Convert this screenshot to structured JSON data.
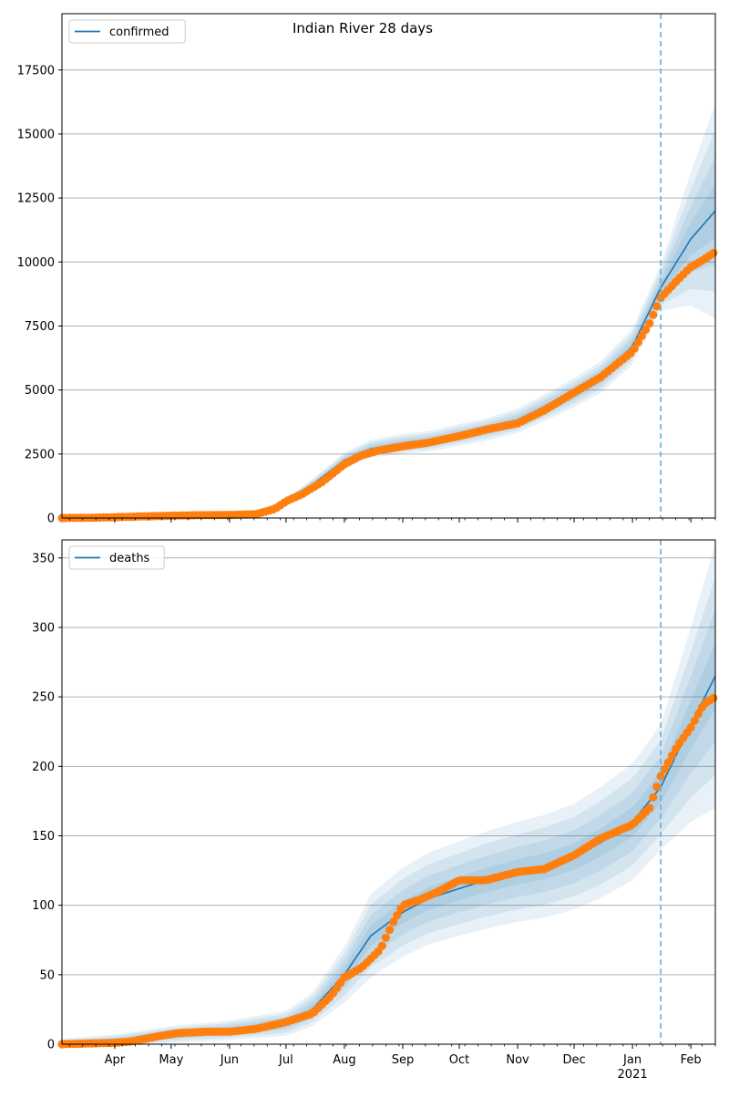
{
  "chart_data": [
    {
      "type": "line",
      "title": "Indian River 28 days",
      "xlabel": "",
      "ylabel": "",
      "ylim": [
        0,
        19700
      ],
      "yticks": [
        0,
        2500,
        5000,
        7500,
        10000,
        12500,
        15000,
        17500
      ],
      "xlim": [
        "2020-03-04",
        "2021-02-14"
      ],
      "forecast_start": "2021-01-16",
      "grid": "horizontal",
      "legend": {
        "position": "upper-left",
        "entries": [
          "confirmed"
        ]
      },
      "colors": {
        "model": "#1f77b4",
        "observed": "#ff7f0e",
        "band": "#1f77b4",
        "forecast_line": "#6aaed6"
      },
      "series": [
        {
          "name": "confirmed",
          "kind": "model",
          "x": [
            "2020-03-04",
            "2020-04-01",
            "2020-05-01",
            "2020-06-01",
            "2020-06-15",
            "2020-07-01",
            "2020-07-15",
            "2020-08-01",
            "2020-08-15",
            "2020-09-01",
            "2020-09-15",
            "2020-10-01",
            "2020-10-15",
            "2020-11-01",
            "2020-11-15",
            "2020-12-01",
            "2020-12-15",
            "2021-01-01",
            "2021-01-16",
            "2021-02-01",
            "2021-02-14"
          ],
          "values": [
            0,
            40,
            80,
            100,
            180,
            650,
            1300,
            2250,
            2700,
            2900,
            3000,
            3250,
            3450,
            3800,
            4300,
            4900,
            5500,
            6700,
            9000,
            10900,
            12000
          ],
          "band_halfwidth": [
            0,
            10,
            20,
            30,
            60,
            120,
            220,
            300,
            350,
            380,
            400,
            420,
            440,
            480,
            520,
            570,
            620,
            700,
            900,
            2600,
            4200
          ]
        },
        {
          "name": "",
          "kind": "observed",
          "x": [
            "2020-03-04",
            "2020-03-20",
            "2020-04-01",
            "2020-04-15",
            "2020-05-01",
            "2020-05-15",
            "2020-06-01",
            "2020-06-15",
            "2020-06-25",
            "2020-07-01",
            "2020-07-10",
            "2020-07-20",
            "2020-08-01",
            "2020-08-10",
            "2020-08-20",
            "2020-09-01",
            "2020-09-15",
            "2020-10-01",
            "2020-10-15",
            "2020-11-01",
            "2020-11-15",
            "2020-12-01",
            "2020-12-15",
            "2021-01-01",
            "2021-01-10",
            "2021-01-16",
            "2021-01-25",
            "2021-02-01",
            "2021-02-08",
            "2021-02-14"
          ],
          "values": [
            0,
            10,
            30,
            60,
            90,
            110,
            120,
            150,
            350,
            650,
            950,
            1400,
            2100,
            2450,
            2650,
            2800,
            2950,
            3200,
            3450,
            3700,
            4200,
            4900,
            5500,
            6500,
            7600,
            8600,
            9300,
            9800,
            10100,
            10400
          ]
        }
      ]
    },
    {
      "type": "line",
      "title": "",
      "xlabel": "",
      "ylabel": "",
      "ylim": [
        0,
        363
      ],
      "yticks": [
        0,
        50,
        100,
        150,
        200,
        250,
        300,
        350
      ],
      "xlim": [
        "2020-03-04",
        "2021-02-14"
      ],
      "forecast_start": "2021-01-16",
      "grid": "horizontal",
      "legend": {
        "position": "upper-left",
        "entries": [
          "deaths"
        ]
      },
      "x_tick_labels": [
        "Apr",
        "May",
        "Jun",
        "Jul",
        "Aug",
        "Sep",
        "Oct",
        "Nov",
        "Dec",
        "Jan",
        "Feb"
      ],
      "x_tick_dates": [
        "2020-04-01",
        "2020-05-01",
        "2020-06-01",
        "2020-07-01",
        "2020-08-01",
        "2020-09-01",
        "2020-10-01",
        "2020-11-01",
        "2020-12-01",
        "2021-01-01",
        "2021-02-01"
      ],
      "x_year_label": "2021",
      "colors": {
        "model": "#1f77b4",
        "observed": "#ff7f0e",
        "band": "#1f77b4",
        "forecast_line": "#6aaed6"
      },
      "series": [
        {
          "name": "deaths",
          "kind": "model",
          "x": [
            "2020-03-04",
            "2020-04-01",
            "2020-05-01",
            "2020-06-01",
            "2020-07-01",
            "2020-07-15",
            "2020-08-01",
            "2020-08-15",
            "2020-09-01",
            "2020-09-15",
            "2020-10-01",
            "2020-10-15",
            "2020-11-01",
            "2020-11-15",
            "2020-12-01",
            "2020-12-15",
            "2021-01-01",
            "2021-01-16",
            "2021-02-01",
            "2021-02-14"
          ],
          "values": [
            0,
            2,
            7,
            10,
            15,
            25,
            50,
            78,
            95,
            105,
            112,
            118,
            124,
            128,
            135,
            145,
            160,
            185,
            230,
            265
          ],
          "band_halfwidth": [
            4,
            5,
            6,
            7,
            9,
            12,
            20,
            30,
            32,
            33,
            34,
            35,
            36,
            37,
            38,
            40,
            42,
            45,
            70,
            95
          ]
        },
        {
          "name": "",
          "kind": "observed",
          "x": [
            "2020-03-04",
            "2020-04-01",
            "2020-04-10",
            "2020-04-25",
            "2020-05-05",
            "2020-05-20",
            "2020-06-01",
            "2020-06-15",
            "2020-07-01",
            "2020-07-15",
            "2020-07-25",
            "2020-08-01",
            "2020-08-10",
            "2020-08-20",
            "2020-08-27",
            "2020-09-01",
            "2020-09-10",
            "2020-09-20",
            "2020-10-01",
            "2020-10-15",
            "2020-11-01",
            "2020-11-15",
            "2020-12-01",
            "2020-12-15",
            "2021-01-01",
            "2021-01-10",
            "2021-01-16",
            "2021-01-25",
            "2021-02-01",
            "2021-02-08",
            "2021-02-14"
          ],
          "values": [
            0,
            1,
            2,
            6,
            8,
            9,
            9,
            11,
            16,
            22,
            35,
            48,
            55,
            68,
            88,
            100,
            104,
            110,
            118,
            118,
            124,
            126,
            136,
            148,
            158,
            170,
            193,
            215,
            228,
            245,
            250
          ]
        }
      ]
    }
  ]
}
